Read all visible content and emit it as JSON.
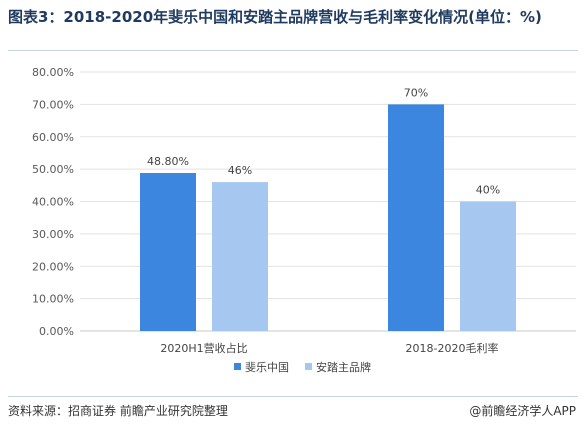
{
  "title": "图表3：2018-2020年斐乐中国和安踏主品牌营收与毛利率变化情况(单位：%)",
  "source": "资料来源：招商证券 前瞻产业研究院整理",
  "credit": "@前瞻经济学人APP",
  "colors": {
    "series1": "#3d86e0",
    "series2": "#a6c8f0",
    "grid": "#e3e3e3",
    "axis": "#c8c8c8"
  },
  "chart_data": {
    "type": "bar",
    "categories": [
      "2020H1营收占比",
      "2018-2020毛利率"
    ],
    "series": [
      {
        "name": "斐乐中国",
        "values": [
          48.8,
          70
        ],
        "labels": [
          "48.80%",
          "70%"
        ]
      },
      {
        "name": "安踏主品牌",
        "values": [
          46,
          40
        ],
        "labels": [
          "46%",
          "40%"
        ]
      }
    ],
    "ylim": [
      0,
      80
    ],
    "yticks": [
      0,
      10,
      20,
      30,
      40,
      50,
      60,
      70,
      80
    ],
    "ytick_labels": [
      "0.00%",
      "10.00%",
      "20.00%",
      "30.00%",
      "40.00%",
      "50.00%",
      "60.00%",
      "70.00%",
      "80.00%"
    ],
    "grid": true,
    "legend": "bottom-center"
  }
}
